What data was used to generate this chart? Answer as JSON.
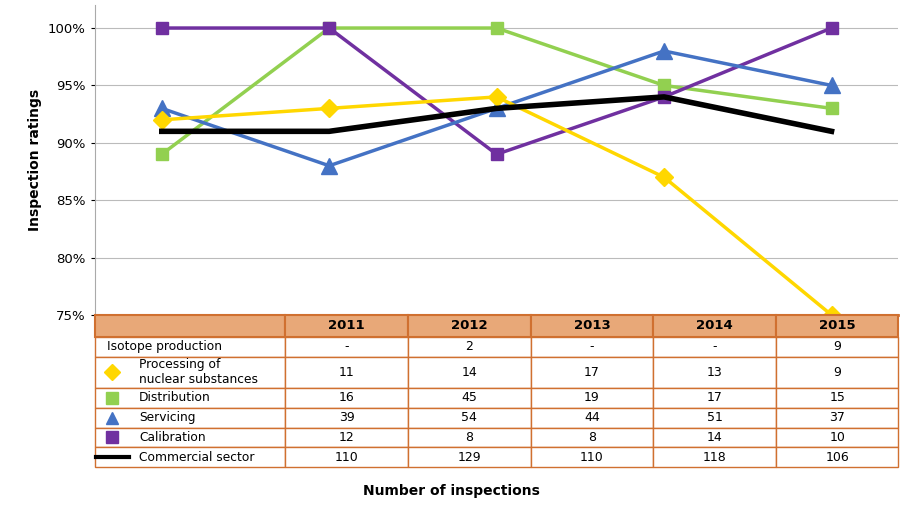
{
  "years": [
    2011,
    2012,
    2013,
    2014,
    2015
  ],
  "processing_vals": [
    92,
    93,
    94,
    87,
    75
  ],
  "distribution_vals": [
    89,
    100,
    100,
    95,
    93
  ],
  "servicing_vals": [
    93,
    88,
    93,
    98,
    95
  ],
  "calibration_vals": [
    100,
    100,
    89,
    94,
    100
  ],
  "commercial_vals": [
    91,
    91,
    93,
    94,
    91
  ],
  "processing_color": "#FFD700",
  "distribution_color": "#92D050",
  "servicing_color": "#4472C4",
  "calibration_color": "#7030A0",
  "commercial_color": "#000000",
  "table_header_bg": "#E8A878",
  "table_white_bg": "#FFFFFF",
  "table_border_color": "#D07030",
  "ylabel": "Inspection ratings",
  "xlabel": "Number of inspections",
  "ylim": [
    75,
    102
  ],
  "yticks": [
    75,
    80,
    85,
    90,
    95,
    100
  ],
  "ytick_labels": [
    "75%",
    "80%",
    "85%",
    "90%",
    "95%",
    "100%"
  ],
  "linewidth": 2.5,
  "marker_size": 9,
  "grid_color": "#BBBBBB",
  "table_headers": [
    "",
    "2011",
    "2012",
    "2013",
    "2014",
    "2015"
  ],
  "table_rows": [
    [
      "Isotope production",
      "-",
      "2",
      "-",
      "-",
      "9"
    ],
    [
      "Processing of\nnuclear substances",
      "11",
      "14",
      "17",
      "13",
      "9"
    ],
    [
      "Distribution",
      "16",
      "45",
      "19",
      "17",
      "15"
    ],
    [
      "Servicing",
      "39",
      "54",
      "44",
      "51",
      "37"
    ],
    [
      "Calibration",
      "12",
      "8",
      "8",
      "14",
      "10"
    ],
    [
      "Commercial sector",
      "110",
      "129",
      "110",
      "118",
      "106"
    ]
  ],
  "icon_specs": [
    {
      "type": "none"
    },
    {
      "type": "diamond",
      "color": "#FFD700"
    },
    {
      "type": "square",
      "color": "#92D050"
    },
    {
      "type": "triangle",
      "color": "#4472C4"
    },
    {
      "type": "square",
      "color": "#7030A0"
    },
    {
      "type": "line",
      "color": "#000000"
    }
  ]
}
